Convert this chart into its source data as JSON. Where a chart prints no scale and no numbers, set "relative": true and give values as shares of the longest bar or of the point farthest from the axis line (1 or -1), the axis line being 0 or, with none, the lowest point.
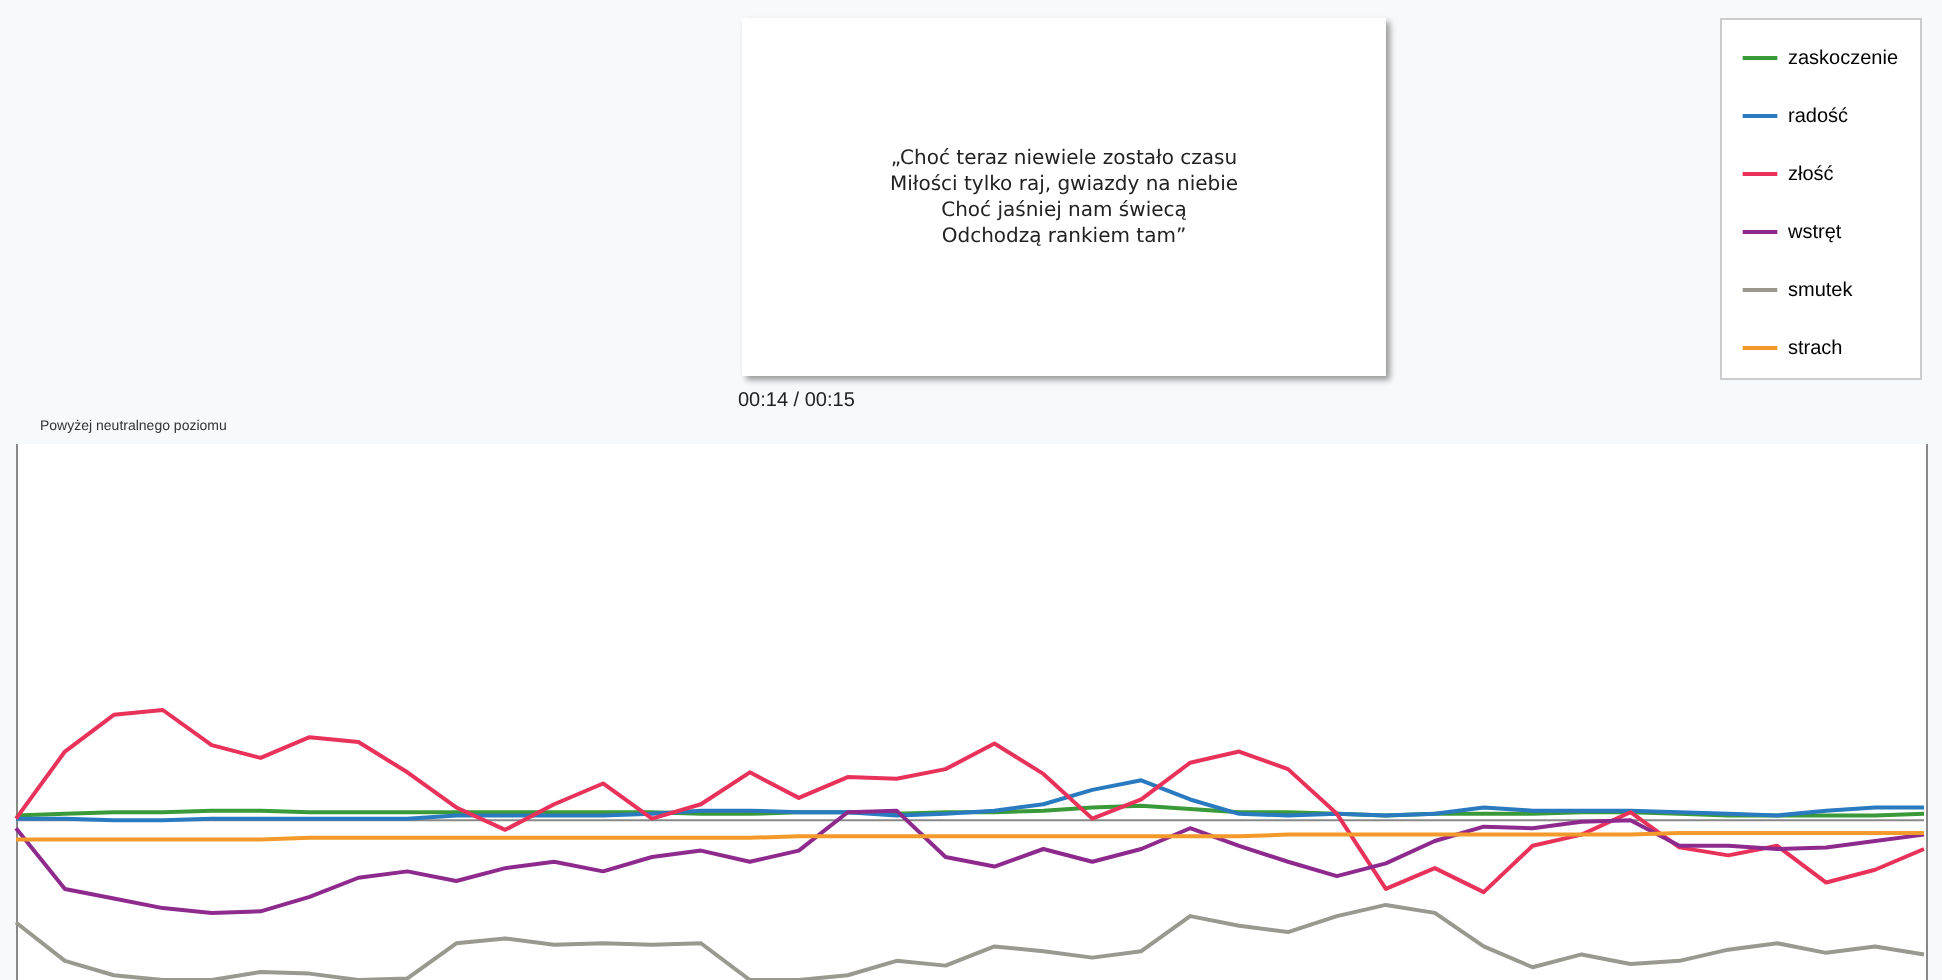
{
  "chart_data": {
    "type": "line",
    "relative": true,
    "annotations": [
      "„Choć teraz niewiele zostało czasu\nMiłości tylko raj, gwiazdy na niebie\nChoć jaśniej nam świecą\nOdchodzą rankiem tam”",
      "00:14 / 00:15",
      "Powyżej neutralnego poziomu"
    ],
    "legend": "top right",
    "marker": "none",
    "line_style": "solid",
    "categories": [
      null,
      null,
      null,
      null,
      null,
      null,
      null,
      null,
      null,
      null,
      null,
      null,
      null,
      null,
      null,
      null,
      null,
      null,
      null,
      null,
      null,
      null,
      null,
      null,
      null,
      null,
      null,
      null,
      null,
      null,
      null,
      null,
      null,
      null,
      null,
      null,
      null,
      null,
      null,
      null
    ],
    "series": [
      {
        "name": "zaskoczenie",
        "color": "#3a9a3a",
        "values": [
          0.03,
          0.04,
          0.05,
          0.05,
          0.06,
          0.06,
          0.05,
          0.05,
          0.05,
          0.05,
          0.05,
          0.05,
          0.05,
          0.05,
          0.04,
          0.04,
          0.05,
          0.05,
          0.04,
          0.05,
          0.05,
          0.06,
          0.08,
          0.09,
          0.07,
          0.05,
          0.05,
          0.04,
          0.03,
          0.04,
          0.04,
          0.04,
          0.05,
          0.05,
          0.04,
          0.03,
          0.03,
          0.03,
          0.03,
          0.04
        ]
      },
      {
        "name": "radość",
        "color": "#2a7ac0",
        "values": [
          0.01,
          0.01,
          0,
          0,
          0.01,
          0.01,
          0.01,
          0.01,
          0.01,
          0.03,
          0.03,
          0.03,
          0.03,
          0.04,
          0.06,
          0.06,
          0.05,
          0.05,
          0.03,
          0.04,
          0.06,
          0.1,
          0.19,
          0.25,
          0.13,
          0.04,
          0.03,
          0.04,
          0.03,
          0.04,
          0.08,
          0.06,
          0.06,
          0.06,
          0.05,
          0.04,
          0.03,
          0.06,
          0.08,
          0.08
        ]
      },
      {
        "name": "złość",
        "color": "#e8325a",
        "values": [
          0.01,
          0.43,
          0.66,
          0.69,
          0.47,
          0.39,
          0.52,
          0.49,
          0.3,
          0.08,
          -0.06,
          0.1,
          0.23,
          0.01,
          0.1,
          0.3,
          0.14,
          0.27,
          0.26,
          0.32,
          0.48,
          0.29,
          0.01,
          0.13,
          0.36,
          0.43,
          0.32,
          0.04,
          -0.43,
          -0.3,
          -0.45,
          -0.16,
          -0.09,
          0.05,
          -0.17,
          -0.22,
          -0.16,
          -0.39,
          -0.31,
          -0.18
        ]
      },
      {
        "name": "wstręt",
        "color": "#8e2a8e",
        "values": [
          -0.05,
          -0.43,
          -0.49,
          -0.55,
          -0.58,
          -0.57,
          -0.48,
          -0.36,
          -0.32,
          -0.38,
          -0.3,
          -0.26,
          -0.32,
          -0.23,
          -0.19,
          -0.26,
          -0.19,
          0.05,
          0.06,
          -0.23,
          -0.29,
          -0.18,
          -0.26,
          -0.18,
          -0.05,
          -0.16,
          -0.26,
          -0.35,
          -0.27,
          -0.13,
          -0.04,
          -0.05,
          -0.01,
          0,
          -0.16,
          -0.16,
          -0.18,
          -0.17,
          -0.13,
          -0.09
        ]
      },
      {
        "name": "smutek",
        "color": "#999990",
        "values": [
          -0.64,
          -0.88,
          -0.97,
          -1,
          -1,
          -0.95,
          -0.96,
          -1,
          -0.99,
          -0.77,
          -0.74,
          -0.78,
          -0.77,
          -0.78,
          -0.77,
          -1,
          -1,
          -0.97,
          -0.88,
          -0.91,
          -0.79,
          -0.82,
          -0.86,
          -0.82,
          -0.6,
          -0.66,
          -0.7,
          -0.6,
          -0.53,
          -0.58,
          -0.79,
          -0.92,
          -0.84,
          -0.9,
          -0.88,
          -0.81,
          -0.77,
          -0.83,
          -0.79,
          -0.84
        ]
      },
      {
        "name": "strach",
        "color": "#f39a2b",
        "values": [
          -0.12,
          -0.12,
          -0.12,
          -0.12,
          -0.12,
          -0.12,
          -0.11,
          -0.11,
          -0.11,
          -0.11,
          -0.11,
          -0.11,
          -0.11,
          -0.11,
          -0.11,
          -0.11,
          -0.1,
          -0.1,
          -0.1,
          -0.1,
          -0.1,
          -0.1,
          -0.1,
          -0.1,
          -0.1,
          -0.1,
          -0.09,
          -0.09,
          -0.09,
          -0.09,
          -0.09,
          -0.09,
          -0.09,
          -0.09,
          -0.08,
          -0.08,
          -0.08,
          -0.08,
          -0.08,
          -0.08
        ]
      }
    ]
  }
}
